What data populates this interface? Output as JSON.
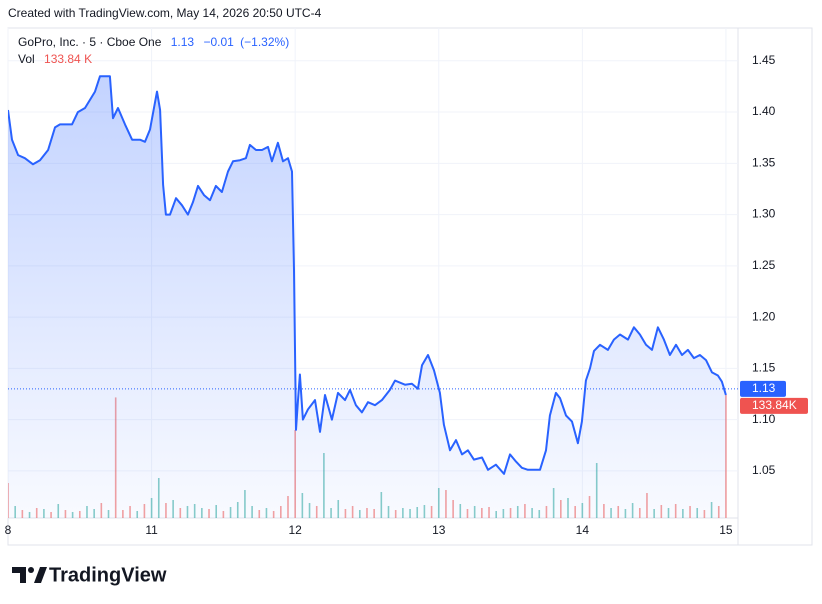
{
  "header": {
    "created": "Created with TradingView.com, May 14, 2026 20:50 UTC-4"
  },
  "chart_data": {
    "type": "line",
    "symbol": "GoPro, Inc. · 5 · Cboe One",
    "last_price": 1.13,
    "change": {
      "value": -0.01,
      "label": "−0.01"
    },
    "change_percent": {
      "value": -1.32,
      "label": "(−1.32%)"
    },
    "volume_label": {
      "value": 133840,
      "label": "133.84 K"
    },
    "volume_axis_label": {
      "value": 133840,
      "label": "133.84K"
    },
    "xlim": [
      0,
      5.084
    ],
    "xticks": [
      {
        "value": 0,
        "label": "8"
      },
      {
        "value": 1,
        "label": "11"
      },
      {
        "value": 2,
        "label": "12"
      },
      {
        "value": 3,
        "label": "13"
      },
      {
        "value": 4,
        "label": "14"
      },
      {
        "value": 5,
        "label": "15"
      }
    ],
    "ylim": [
      1.004,
      1.482
    ],
    "yticks": [
      1.05,
      {
        "value": 1.1,
        "label": "1.10"
      },
      1.15,
      {
        "value": 1.2,
        "label": "1.20"
      },
      1.25,
      {
        "value": 1.3,
        "label": "1.30"
      },
      1.35,
      {
        "value": 1.4,
        "label": "1.40"
      },
      1.45
    ],
    "grid": true,
    "series": [
      {
        "color": "#2962ff",
        "x": [
          0,
          0.028,
          0.07,
          0.118,
          0.174,
          0.223,
          0.279,
          0.327,
          0.362,
          0.446,
          0.487,
          0.536,
          0.606,
          0.641,
          0.71,
          0.731,
          0.766,
          0.815,
          0.864,
          0.919,
          0.954,
          0.989,
          1.038,
          1.059,
          1.08,
          1.1,
          1.128,
          1.17,
          1.212,
          1.253,
          1.288,
          1.323,
          1.365,
          1.407,
          1.448,
          1.49,
          1.532,
          1.567,
          1.616,
          1.657,
          1.685,
          1.727,
          1.769,
          1.811,
          1.838,
          1.88,
          1.915,
          1.95,
          1.978,
          1.992,
          2.006,
          2.02,
          2.033,
          2.054,
          2.089,
          2.138,
          2.173,
          2.208,
          2.256,
          2.298,
          2.347,
          2.382,
          2.423,
          2.465,
          2.507,
          2.556,
          2.604,
          2.66,
          2.695,
          2.765,
          2.813,
          2.855,
          2.883,
          2.925,
          2.967,
          3.008,
          3.036,
          3.078,
          3.12,
          3.162,
          3.203,
          3.245,
          3.301,
          3.343,
          3.398,
          3.454,
          3.496,
          3.538,
          3.579,
          3.621,
          3.705,
          3.747,
          3.774,
          3.816,
          3.844,
          3.886,
          3.928,
          3.969,
          3.997,
          4.025,
          4.053,
          4.081,
          4.123,
          4.178,
          4.22,
          4.262,
          4.318,
          4.359,
          4.401,
          4.443,
          4.485,
          4.526,
          4.568,
          4.61,
          4.652,
          4.694,
          4.735,
          4.777,
          4.819,
          4.861,
          4.903,
          4.944,
          4.972,
          5.0
        ],
        "values": [
          1.402,
          1.373,
          1.358,
          1.355,
          1.349,
          1.353,
          1.363,
          1.385,
          1.388,
          1.388,
          1.4,
          1.404,
          1.42,
          1.435,
          1.435,
          1.394,
          1.404,
          1.388,
          1.373,
          1.373,
          1.371,
          1.383,
          1.42,
          1.402,
          1.329,
          1.3,
          1.3,
          1.316,
          1.309,
          1.3,
          1.312,
          1.328,
          1.319,
          1.314,
          1.328,
          1.322,
          1.342,
          1.352,
          1.353,
          1.355,
          1.368,
          1.363,
          1.363,
          1.366,
          1.352,
          1.37,
          1.352,
          1.355,
          1.342,
          1.246,
          1.09,
          1.119,
          1.144,
          1.1,
          1.11,
          1.119,
          1.088,
          1.124,
          1.1,
          1.126,
          1.119,
          1.129,
          1.114,
          1.107,
          1.117,
          1.114,
          1.119,
          1.129,
          1.138,
          1.134,
          1.135,
          1.13,
          1.153,
          1.163,
          1.148,
          1.126,
          1.095,
          1.07,
          1.08,
          1.066,
          1.07,
          1.061,
          1.063,
          1.051,
          1.056,
          1.047,
          1.066,
          1.059,
          1.053,
          1.051,
          1.051,
          1.07,
          1.104,
          1.126,
          1.121,
          1.104,
          1.098,
          1.077,
          1.098,
          1.138,
          1.15,
          1.167,
          1.173,
          1.168,
          1.178,
          1.183,
          1.178,
          1.19,
          1.183,
          1.173,
          1.168,
          1.19,
          1.178,
          1.163,
          1.173,
          1.163,
          1.168,
          1.16,
          1.163,
          1.158,
          1.146,
          1.143,
          1.137,
          1.124
        ]
      },
      {
        "name": "Vol",
        "type": "bar",
        "x": [
          0,
          0.05,
          0.1,
          0.15,
          0.2,
          0.25,
          0.3,
          0.35,
          0.4,
          0.45,
          0.5,
          0.55,
          0.6,
          0.65,
          0.7,
          0.75,
          0.8,
          0.85,
          0.9,
          0.95,
          1,
          1.05,
          1.1,
          1.15,
          1.2,
          1.25,
          1.3,
          1.35,
          1.4,
          1.45,
          1.5,
          1.55,
          1.6,
          1.65,
          1.7,
          1.75,
          1.8,
          1.85,
          1.9,
          1.95,
          2,
          2.05,
          2.1,
          2.15,
          2.2,
          2.25,
          2.3,
          2.35,
          2.4,
          2.45,
          2.5,
          2.55,
          2.6,
          2.65,
          2.7,
          2.75,
          2.8,
          2.85,
          2.9,
          2.95,
          3,
          3.05,
          3.1,
          3.15,
          3.2,
          3.25,
          3.3,
          3.35,
          3.4,
          3.45,
          3.5,
          3.55,
          3.6,
          3.65,
          3.7,
          3.75,
          3.8,
          3.85,
          3.9,
          3.95,
          4,
          4.05,
          4.1,
          4.15,
          4.2,
          4.25,
          4.3,
          4.35,
          4.4,
          4.45,
          4.5,
          4.55,
          4.6,
          4.65,
          4.7,
          4.75,
          4.8,
          4.85,
          4.9,
          4.95,
          5
        ],
        "values": [
          38080,
          13060,
          8700,
          6530,
          10880,
          9790,
          6530,
          15230,
          8700,
          6530,
          7620,
          13060,
          9790,
          16320,
          8700,
          131200,
          8700,
          13060,
          7620,
          15230,
          21760,
          43520,
          16320,
          19580,
          10880,
          13060,
          15230,
          10880,
          9790,
          14140,
          7620,
          11970,
          17410,
          30460,
          13060,
          8700,
          10880,
          7620,
          13060,
          23940,
          95740,
          27200,
          16320,
          13060,
          70720,
          10880,
          19580,
          9790,
          13060,
          8700,
          10880,
          9790,
          28290,
          13060,
          8700,
          10880,
          9790,
          11970,
          14140,
          13060,
          32640,
          30460,
          19580,
          15230,
          9790,
          13060,
          10880,
          11970,
          7620,
          9790,
          10880,
          13060,
          15230,
          10880,
          8700,
          13060,
          32640,
          19580,
          21760,
          13060,
          16320,
          23940,
          59840,
          15230,
          10880,
          13060,
          9790,
          16320,
          10880,
          27200,
          9790,
          14140,
          10880,
          15230,
          9790,
          13060,
          10880,
          8700,
          17410,
          13060,
          133840
        ],
        "colors": [
          "#ef5350",
          "#26a69a",
          "#ef5350",
          "#26a69a",
          "#ef5350",
          "#26a69a",
          "#ef5350",
          "#26a69a",
          "#ef5350",
          "#26a69a",
          "#ef5350",
          "#26a69a",
          "#26a69a",
          "#ef5350",
          "#26a69a",
          "#ef5350",
          "#ef5350",
          "#ef5350",
          "#26a69a",
          "#ef5350",
          "#26a69a",
          "#26a69a",
          "#ef5350",
          "#26a69a",
          "#ef5350",
          "#26a69a",
          "#26a69a",
          "#26a69a",
          "#ef5350",
          "#26a69a",
          "#ef5350",
          "#26a69a",
          "#26a69a",
          "#26a69a",
          "#26a69a",
          "#ef5350",
          "#26a69a",
          "#ef5350",
          "#ef5350",
          "#ef5350",
          "#ef5350",
          "#26a69a",
          "#26a69a",
          "#ef5350",
          "#26a69a",
          "#26a69a",
          "#26a69a",
          "#ef5350",
          "#ef5350",
          "#26a69a",
          "#ef5350",
          "#ef5350",
          "#26a69a",
          "#26a69a",
          "#ef5350",
          "#26a69a",
          "#26a69a",
          "#26a69a",
          "#26a69a",
          "#ef5350",
          "#26a69a",
          "#ef5350",
          "#ef5350",
          "#26a69a",
          "#ef5350",
          "#26a69a",
          "#ef5350",
          "#ef5350",
          "#26a69a",
          "#26a69a",
          "#ef5350",
          "#26a69a",
          "#ef5350",
          "#26a69a",
          "#26a69a",
          "#ef5350",
          "#26a69a",
          "#ef5350",
          "#26a69a",
          "#ef5350",
          "#26a69a",
          "#ef5350",
          "#26a69a",
          "#ef5350",
          "#26a69a",
          "#ef5350",
          "#26a69a",
          "#26a69a",
          "#ef5350",
          "#ef5350",
          "#26a69a",
          "#ef5350",
          "#26a69a",
          "#ef5350",
          "#26a69a",
          "#ef5350",
          "#26a69a",
          "#ef5350",
          "#26a69a",
          "#ef5350",
          "#ef5350"
        ]
      }
    ]
  },
  "footer": {
    "logo": "TradingView"
  }
}
